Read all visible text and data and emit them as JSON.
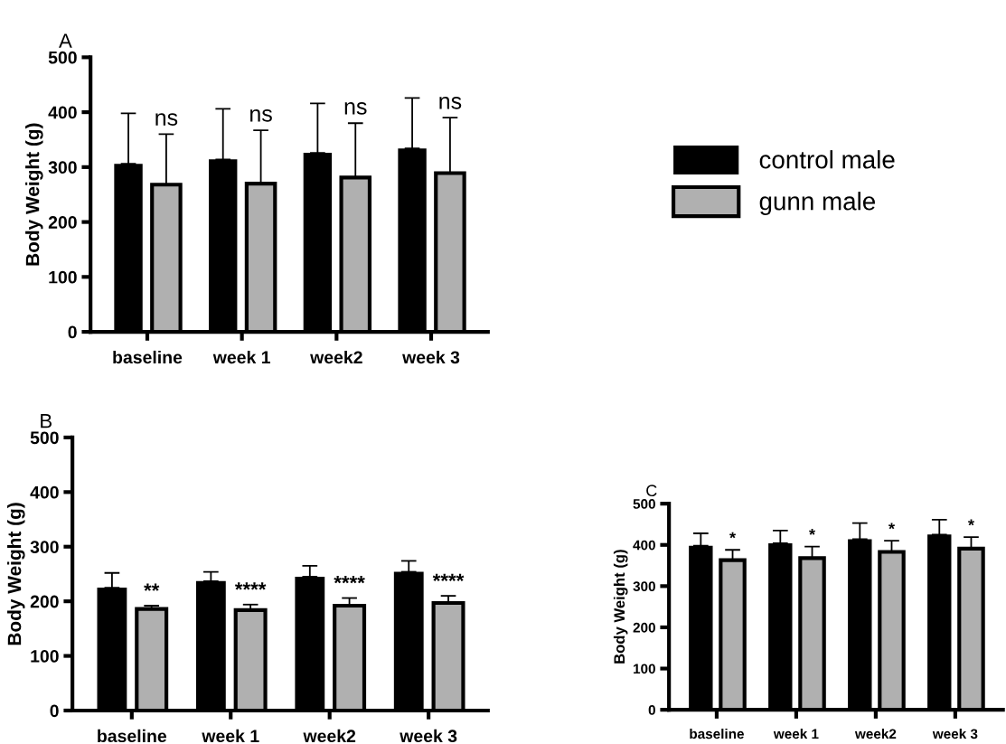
{
  "chart_data": [
    {
      "type": "bar",
      "title": "A",
      "ylabel": "Body Weight (g)",
      "categories": [
        "baseline",
        "week 1",
        "week2",
        "week 3"
      ],
      "ylim": [
        0,
        500
      ],
      "yticks": [
        0,
        100,
        200,
        300,
        400,
        500
      ],
      "legend": "right",
      "grid": false,
      "series": [
        {
          "name": "control male",
          "color": "#000000",
          "values": [
            306,
            314,
            326,
            334
          ],
          "errors": [
            [
              306,
              398
            ],
            [
              314,
              406
            ],
            [
              326,
              416
            ],
            [
              334,
              426
            ]
          ]
        },
        {
          "name": "gunn male",
          "color": "#b0b0b0",
          "values": [
            268,
            270,
            281,
            289
          ],
          "errors": [
            [
              268,
              360
            ],
            [
              270,
              367
            ],
            [
              281,
              380
            ],
            [
              289,
              390
            ]
          ]
        }
      ],
      "annotations": [
        "ns",
        "ns",
        "ns",
        "ns"
      ]
    },
    {
      "type": "bar",
      "title": "B",
      "ylabel": "Body Weight (g)",
      "categories": [
        "baseline",
        "week 1",
        "week2",
        "week 3"
      ],
      "ylim": [
        0,
        500
      ],
      "yticks": [
        0,
        100,
        200,
        300,
        400,
        500
      ],
      "legend": false,
      "grid": false,
      "series": [
        {
          "color": "#000000",
          "values": [
            225,
            237,
            245,
            254
          ],
          "errors": [
            [
              225,
              252
            ],
            [
              237,
              254
            ],
            [
              245,
              265
            ],
            [
              254,
              274
            ]
          ]
        },
        {
          "color": "#b0b0b0",
          "values": [
            186,
            184,
            192,
            197
          ],
          "errors": [
            [
              186,
              192
            ],
            [
              184,
              194
            ],
            [
              192,
              206
            ],
            [
              197,
              210
            ]
          ]
        }
      ],
      "annotations": [
        "**",
        "****",
        "****",
        "****"
      ]
    },
    {
      "type": "bar",
      "title": "C",
      "ylabel": "Body Weight (g)",
      "categories": [
        "baseline",
        "week 1",
        "week2",
        "week 3"
      ],
      "ylim": [
        0,
        500
      ],
      "yticks": [
        0,
        100,
        200,
        300,
        400,
        500
      ],
      "legend": false,
      "grid": false,
      "series": [
        {
          "color": "#000000",
          "values": [
            398,
            404,
            414,
            425
          ],
          "errors": [
            [
              398,
              428
            ],
            [
              404,
              435
            ],
            [
              414,
              453
            ],
            [
              425,
              461
            ]
          ]
        },
        {
          "color": "#b0b0b0",
          "values": [
            363,
            368,
            383,
            391
          ],
          "errors": [
            [
              363,
              388
            ],
            [
              368,
              396
            ],
            [
              383,
              410
            ],
            [
              391,
              419
            ]
          ]
        }
      ],
      "annotations": [
        "*",
        "*",
        "*",
        "*"
      ]
    }
  ]
}
